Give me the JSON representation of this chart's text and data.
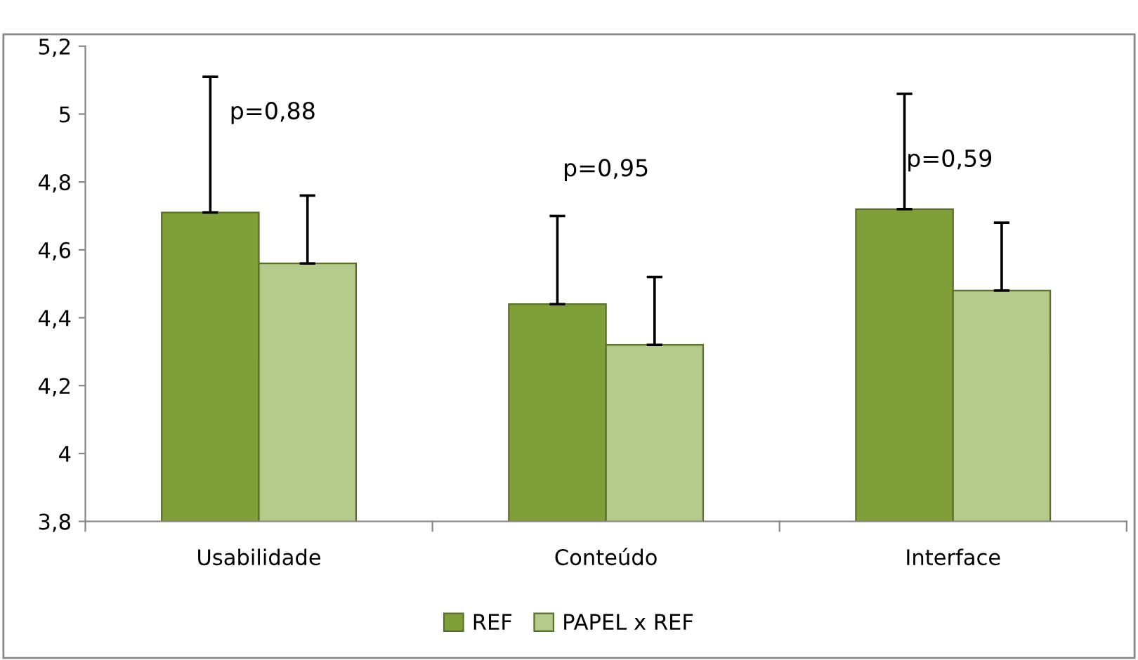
{
  "chart_data": {
    "type": "bar",
    "categories": [
      "Usabilidade",
      "Conteúdo",
      "Interface"
    ],
    "series": [
      {
        "name": "REF",
        "color": "#7f9f38",
        "values": [
          4.71,
          4.44,
          4.72
        ],
        "errors": [
          [
            4.71,
            5.11
          ],
          [
            4.44,
            4.7
          ],
          [
            4.72,
            5.06
          ]
        ]
      },
      {
        "name": "PAPEL x REF",
        "color": "#b4cb8c",
        "values": [
          4.56,
          4.32,
          4.48
        ],
        "errors": [
          [
            4.56,
            4.76
          ],
          [
            4.32,
            4.52
          ],
          [
            4.48,
            4.68
          ]
        ]
      }
    ],
    "ylim": [
      3.8,
      5.2
    ],
    "yticks": [
      {
        "value": 3.8,
        "label": "3,8"
      },
      {
        "value": 4,
        "label": "4"
      },
      {
        "value": 4.2,
        "label": "4,2"
      },
      {
        "value": 4.4,
        "label": "4,4"
      },
      {
        "value": 4.6,
        "label": "4,6"
      },
      {
        "value": 4.8,
        "label": "4,8"
      },
      {
        "value": 5,
        "label": "5"
      },
      {
        "value": 5.2,
        "label": "5,2"
      }
    ],
    "annotations": [
      "p=0,88",
      "p=0,95",
      "p=0,59"
    ],
    "grid": false,
    "legend": "bottom"
  }
}
